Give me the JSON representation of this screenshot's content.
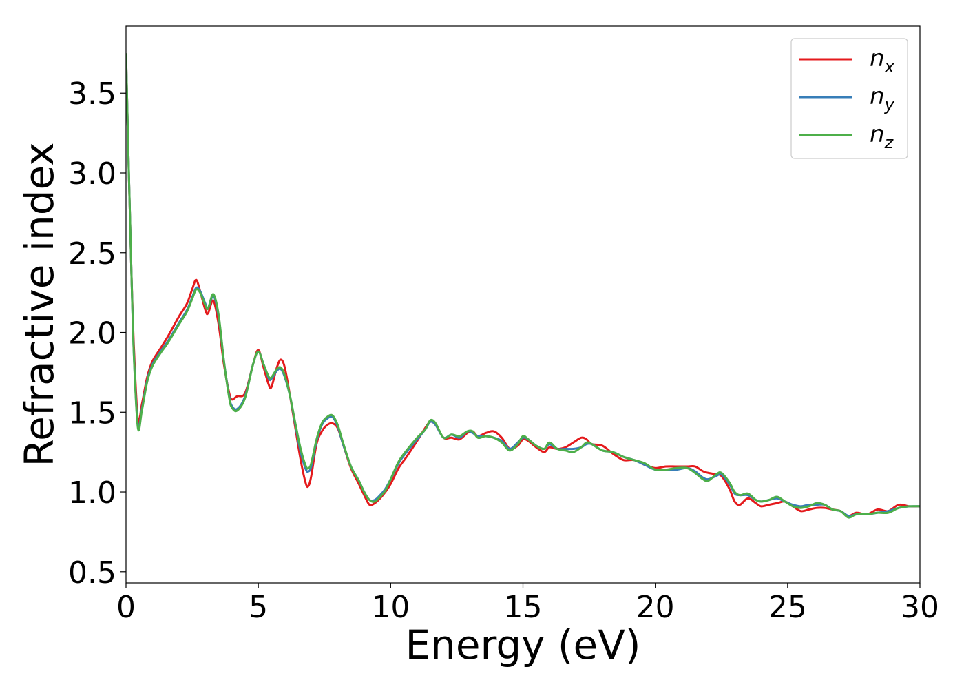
{
  "chart_data": {
    "type": "line",
    "xlabel": "Energy (eV)",
    "ylabel": "Refractive index",
    "xlim": [
      0,
      30
    ],
    "ylim": [
      0.43,
      3.92
    ],
    "xticks": [
      0,
      5,
      10,
      15,
      20,
      25,
      30
    ],
    "xtick_labels": [
      "0",
      "5",
      "10",
      "15",
      "20",
      "25",
      "30"
    ],
    "yticks": [
      0.5,
      1.0,
      1.5,
      2.0,
      2.5,
      3.0,
      3.5
    ],
    "ytick_labels": [
      "0.5",
      "1.0",
      "1.5",
      "2.0",
      "2.5",
      "3.0",
      "3.5"
    ],
    "grid": false,
    "legend_position": "top-right",
    "series": [
      {
        "name": "n_x",
        "label_base": "n",
        "label_sub": "x",
        "color": "#e41a1c",
        "x": [
          0.0,
          0.1,
          0.2,
          0.3,
          0.45,
          0.6,
          0.8,
          1.0,
          1.3,
          1.6,
          2.0,
          2.3,
          2.5,
          2.65,
          2.8,
          3.0,
          3.1,
          3.3,
          3.5,
          3.7,
          3.9,
          4.0,
          4.2,
          4.5,
          4.8,
          5.0,
          5.2,
          5.4,
          5.5,
          5.7,
          5.85,
          6.0,
          6.2,
          6.4,
          6.6,
          6.8,
          6.9,
          7.0,
          7.2,
          7.4,
          7.6,
          7.8,
          8.0,
          8.2,
          8.5,
          8.8,
          9.0,
          9.2,
          9.4,
          9.6,
          9.8,
          10.0,
          10.3,
          10.6,
          11.0,
          11.3,
          11.5,
          11.7,
          12.0,
          12.3,
          12.6,
          12.9,
          13.1,
          13.3,
          13.6,
          13.9,
          14.2,
          14.5,
          14.8,
          15.0,
          15.2,
          15.5,
          15.8,
          16.0,
          16.3,
          16.6,
          16.9,
          17.2,
          17.4,
          17.6,
          18.0,
          18.4,
          18.8,
          19.2,
          19.6,
          20.0,
          20.4,
          20.8,
          21.2,
          21.5,
          21.8,
          22.0,
          22.3,
          22.5,
          22.8,
          23.0,
          23.2,
          23.5,
          23.8,
          24.0,
          24.3,
          24.6,
          24.9,
          25.2,
          25.5,
          25.8,
          26.1,
          26.4,
          26.7,
          27.0,
          27.3,
          27.6,
          28.0,
          28.4,
          28.8,
          29.2,
          29.6,
          30.0
        ],
        "y": [
          3.75,
          3.05,
          2.4,
          1.9,
          1.45,
          1.55,
          1.72,
          1.82,
          1.9,
          1.98,
          2.1,
          2.18,
          2.27,
          2.33,
          2.26,
          2.14,
          2.12,
          2.2,
          2.05,
          1.8,
          1.62,
          1.58,
          1.6,
          1.62,
          1.8,
          1.89,
          1.78,
          1.67,
          1.66,
          1.78,
          1.83,
          1.78,
          1.6,
          1.4,
          1.2,
          1.05,
          1.04,
          1.1,
          1.3,
          1.38,
          1.42,
          1.43,
          1.4,
          1.3,
          1.15,
          1.05,
          0.98,
          0.92,
          0.93,
          0.96,
          1.0,
          1.05,
          1.15,
          1.22,
          1.32,
          1.4,
          1.44,
          1.42,
          1.34,
          1.34,
          1.33,
          1.37,
          1.38,
          1.35,
          1.37,
          1.38,
          1.34,
          1.27,
          1.29,
          1.33,
          1.32,
          1.28,
          1.25,
          1.28,
          1.27,
          1.28,
          1.31,
          1.34,
          1.33,
          1.3,
          1.29,
          1.24,
          1.2,
          1.2,
          1.17,
          1.15,
          1.16,
          1.16,
          1.16,
          1.16,
          1.13,
          1.12,
          1.11,
          1.1,
          1.02,
          0.94,
          0.92,
          0.96,
          0.93,
          0.91,
          0.92,
          0.93,
          0.94,
          0.91,
          0.88,
          0.89,
          0.9,
          0.9,
          0.89,
          0.88,
          0.85,
          0.87,
          0.86,
          0.89,
          0.88,
          0.92,
          0.91,
          0.91
        ]
      },
      {
        "name": "n_y",
        "label_base": "n",
        "label_sub": "y",
        "color": "#377eb8",
        "x": [
          0.0,
          0.1,
          0.2,
          0.3,
          0.45,
          0.6,
          0.8,
          1.0,
          1.3,
          1.6,
          2.0,
          2.3,
          2.5,
          2.65,
          2.8,
          3.0,
          3.1,
          3.3,
          3.5,
          3.7,
          3.9,
          4.0,
          4.2,
          4.5,
          4.8,
          5.0,
          5.2,
          5.4,
          5.5,
          5.7,
          5.85,
          6.0,
          6.2,
          6.4,
          6.6,
          6.8,
          6.9,
          7.0,
          7.2,
          7.4,
          7.6,
          7.8,
          8.0,
          8.2,
          8.5,
          8.8,
          9.0,
          9.2,
          9.4,
          9.6,
          9.8,
          10.0,
          10.3,
          10.6,
          11.0,
          11.3,
          11.5,
          11.7,
          12.0,
          12.3,
          12.6,
          12.9,
          13.1,
          13.3,
          13.6,
          13.9,
          14.2,
          14.5,
          14.8,
          15.0,
          15.2,
          15.5,
          15.8,
          16.0,
          16.3,
          16.6,
          16.9,
          17.2,
          17.4,
          17.6,
          18.0,
          18.4,
          18.8,
          19.2,
          19.6,
          20.0,
          20.4,
          20.8,
          21.2,
          21.5,
          21.8,
          22.0,
          22.3,
          22.5,
          22.8,
          23.0,
          23.2,
          23.5,
          23.8,
          24.0,
          24.3,
          24.6,
          24.9,
          25.2,
          25.5,
          25.8,
          26.1,
          26.4,
          26.7,
          27.0,
          27.3,
          27.6,
          28.0,
          28.4,
          28.8,
          29.2,
          29.6,
          30.0
        ],
        "y": [
          3.75,
          3.05,
          2.4,
          1.85,
          1.41,
          1.52,
          1.7,
          1.8,
          1.88,
          1.95,
          2.06,
          2.14,
          2.22,
          2.28,
          2.26,
          2.18,
          2.15,
          2.23,
          2.1,
          1.82,
          1.6,
          1.54,
          1.52,
          1.6,
          1.8,
          1.88,
          1.8,
          1.71,
          1.71,
          1.76,
          1.77,
          1.72,
          1.6,
          1.42,
          1.25,
          1.14,
          1.13,
          1.16,
          1.32,
          1.42,
          1.46,
          1.47,
          1.41,
          1.3,
          1.16,
          1.07,
          1.0,
          0.95,
          0.95,
          0.98,
          1.02,
          1.08,
          1.18,
          1.25,
          1.33,
          1.39,
          1.44,
          1.42,
          1.34,
          1.36,
          1.34,
          1.38,
          1.37,
          1.35,
          1.35,
          1.34,
          1.32,
          1.27,
          1.31,
          1.34,
          1.33,
          1.29,
          1.27,
          1.3,
          1.27,
          1.27,
          1.27,
          1.28,
          1.3,
          1.3,
          1.26,
          1.25,
          1.22,
          1.2,
          1.17,
          1.14,
          1.14,
          1.14,
          1.15,
          1.13,
          1.09,
          1.08,
          1.1,
          1.11,
          1.05,
          0.99,
          0.98,
          0.98,
          0.95,
          0.94,
          0.95,
          0.96,
          0.94,
          0.92,
          0.91,
          0.92,
          0.92,
          0.92,
          0.89,
          0.88,
          0.85,
          0.86,
          0.86,
          0.87,
          0.88,
          0.9,
          0.91,
          0.91
        ]
      },
      {
        "name": "n_z",
        "label_base": "n",
        "label_sub": "z",
        "color": "#4daf4a",
        "x": [
          0.0,
          0.1,
          0.2,
          0.3,
          0.45,
          0.6,
          0.8,
          1.0,
          1.3,
          1.6,
          2.0,
          2.3,
          2.5,
          2.65,
          2.8,
          3.0,
          3.1,
          3.3,
          3.5,
          3.7,
          3.9,
          4.0,
          4.2,
          4.5,
          4.8,
          5.0,
          5.2,
          5.4,
          5.5,
          5.7,
          5.85,
          6.0,
          6.2,
          6.4,
          6.6,
          6.8,
          6.9,
          7.0,
          7.2,
          7.4,
          7.6,
          7.8,
          8.0,
          8.2,
          8.5,
          8.8,
          9.0,
          9.2,
          9.4,
          9.6,
          9.8,
          10.0,
          10.3,
          10.6,
          11.0,
          11.3,
          11.5,
          11.7,
          12.0,
          12.3,
          12.6,
          12.9,
          13.1,
          13.3,
          13.6,
          13.9,
          14.2,
          14.5,
          14.8,
          15.0,
          15.2,
          15.5,
          15.8,
          16.0,
          16.3,
          16.6,
          16.9,
          17.2,
          17.4,
          17.6,
          18.0,
          18.4,
          18.8,
          19.2,
          19.6,
          20.0,
          20.4,
          20.8,
          21.2,
          21.5,
          21.8,
          22.0,
          22.3,
          22.5,
          22.8,
          23.0,
          23.2,
          23.5,
          23.8,
          24.0,
          24.3,
          24.6,
          24.9,
          25.2,
          25.5,
          25.8,
          26.1,
          26.4,
          26.7,
          27.0,
          27.3,
          27.6,
          28.0,
          28.4,
          28.8,
          29.2,
          29.6,
          30.0
        ],
        "y": [
          3.75,
          3.05,
          2.4,
          1.84,
          1.4,
          1.51,
          1.69,
          1.79,
          1.87,
          1.94,
          2.05,
          2.13,
          2.21,
          2.27,
          2.25,
          2.17,
          2.15,
          2.24,
          2.11,
          1.82,
          1.59,
          1.53,
          1.51,
          1.59,
          1.8,
          1.88,
          1.8,
          1.72,
          1.72,
          1.77,
          1.78,
          1.73,
          1.6,
          1.43,
          1.27,
          1.16,
          1.15,
          1.18,
          1.33,
          1.43,
          1.47,
          1.48,
          1.42,
          1.31,
          1.16,
          1.07,
          1.0,
          0.95,
          0.94,
          0.97,
          1.01,
          1.08,
          1.19,
          1.26,
          1.34,
          1.39,
          1.45,
          1.43,
          1.34,
          1.36,
          1.35,
          1.38,
          1.38,
          1.34,
          1.35,
          1.34,
          1.31,
          1.26,
          1.3,
          1.35,
          1.33,
          1.29,
          1.27,
          1.31,
          1.27,
          1.26,
          1.25,
          1.28,
          1.31,
          1.3,
          1.26,
          1.25,
          1.22,
          1.2,
          1.18,
          1.14,
          1.14,
          1.15,
          1.15,
          1.12,
          1.08,
          1.07,
          1.11,
          1.12,
          1.06,
          1.0,
          0.98,
          0.99,
          0.95,
          0.94,
          0.95,
          0.97,
          0.94,
          0.91,
          0.9,
          0.91,
          0.93,
          0.92,
          0.89,
          0.88,
          0.84,
          0.86,
          0.86,
          0.87,
          0.87,
          0.9,
          0.91,
          0.91
        ]
      }
    ]
  }
}
